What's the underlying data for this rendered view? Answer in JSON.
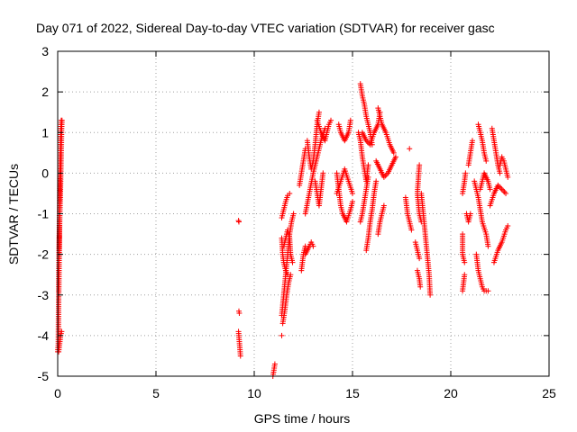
{
  "chart_data": {
    "type": "scatter",
    "title": "Day 071 of 2022, Sidereal Day-to-day VTEC variation (SDTVAR) for receiver gasc",
    "xlabel": "GPS time / hours",
    "ylabel": "SDTVAR / TECUs",
    "xlim": [
      0,
      25
    ],
    "ylim": [
      -5,
      3
    ],
    "xticks": [
      0,
      5,
      10,
      15,
      20,
      25
    ],
    "yticks": [
      -5,
      -4,
      -3,
      -2,
      -1,
      0,
      1,
      2,
      3
    ],
    "xtick_labels": [
      "0",
      "5",
      "10",
      "15",
      "20",
      "25"
    ],
    "ytick_labels": [
      "-5",
      "-4",
      "-3",
      "-2",
      "-1",
      "0",
      "1",
      "2",
      "3"
    ],
    "grid": true,
    "marker": "+",
    "color": "#ff0000",
    "segments": [
      [
        [
          0.0,
          -4.4
        ],
        [
          0.03,
          -4.2
        ],
        [
          0.05,
          -3.0
        ],
        [
          0.07,
          -2.2
        ],
        [
          0.09,
          -1.0
        ],
        [
          0.12,
          0.2
        ],
        [
          0.15,
          0.9
        ],
        [
          0.18,
          1.3
        ]
      ],
      [
        [
          0.05,
          -2.9
        ],
        [
          0.07,
          -2.0
        ],
        [
          0.1,
          -1.2
        ],
        [
          0.13,
          -0.6
        ],
        [
          0.16,
          0.0
        ],
        [
          0.18,
          0.5
        ],
        [
          0.2,
          1.1
        ],
        [
          0.22,
          1.3
        ]
      ],
      [
        [
          0.05,
          -4.4
        ],
        [
          0.1,
          -4.2
        ],
        [
          0.15,
          -4.0
        ],
        [
          0.2,
          -3.9
        ]
      ],
      [
        [
          9.2,
          -1.17
        ],
        [
          9.22,
          -1.2
        ]
      ],
      [
        [
          9.22,
          -3.4
        ],
        [
          9.24,
          -3.45
        ]
      ],
      [
        [
          9.2,
          -3.9
        ],
        [
          9.25,
          -4.2
        ],
        [
          9.3,
          -4.5
        ]
      ],
      [
        [
          10.95,
          -5.0
        ],
        [
          11.0,
          -4.85
        ],
        [
          11.05,
          -4.7
        ]
      ],
      [
        [
          11.4,
          -4.0
        ]
      ],
      [
        [
          11.4,
          -1.1
        ],
        [
          11.5,
          -0.9
        ],
        [
          11.6,
          -0.7
        ],
        [
          11.7,
          -0.55
        ],
        [
          11.8,
          -0.5
        ]
      ],
      [
        [
          11.4,
          -1.6
        ],
        [
          11.45,
          -2.0
        ],
        [
          11.5,
          -2.2
        ],
        [
          11.6,
          -2.4
        ],
        [
          11.7,
          -2.5
        ]
      ],
      [
        [
          11.4,
          -3.5
        ],
        [
          11.5,
          -3.0
        ],
        [
          11.6,
          -2.5
        ],
        [
          11.7,
          -2.0
        ],
        [
          11.8,
          -1.5
        ],
        [
          11.9,
          -1.2
        ],
        [
          12.0,
          -1.0
        ]
      ],
      [
        [
          11.5,
          -1.8
        ],
        [
          11.6,
          -1.6
        ],
        [
          11.7,
          -1.4
        ],
        [
          11.8,
          -1.6
        ],
        [
          11.85,
          -2.0
        ],
        [
          11.95,
          -2.2
        ]
      ],
      [
        [
          11.45,
          -3.7
        ],
        [
          11.55,
          -3.4
        ],
        [
          11.65,
          -3.0
        ],
        [
          11.75,
          -2.7
        ],
        [
          11.85,
          -2.5
        ]
      ],
      [
        [
          12.3,
          -0.3
        ],
        [
          12.5,
          0.3
        ],
        [
          12.6,
          0.6
        ]
      ],
      [
        [
          12.4,
          -2.4
        ],
        [
          12.5,
          -2.0
        ],
        [
          12.6,
          -1.8
        ]
      ],
      [
        [
          12.6,
          -1.0
        ],
        [
          12.8,
          -0.5
        ],
        [
          13.0,
          0.0
        ],
        [
          13.2,
          0.4
        ],
        [
          13.4,
          0.8
        ],
        [
          13.6,
          1.1
        ]
      ],
      [
        [
          12.7,
          0.8
        ],
        [
          12.8,
          0.4
        ],
        [
          12.9,
          0.1
        ],
        [
          13.0,
          0.3
        ],
        [
          13.1,
          0.7
        ],
        [
          13.2,
          1.2
        ],
        [
          13.3,
          1.5
        ]
      ],
      [
        [
          12.6,
          -2.0
        ],
        [
          12.8,
          -1.8
        ],
        [
          12.9,
          -1.7
        ],
        [
          13.0,
          -1.8
        ]
      ],
      [
        [
          13.1,
          -0.2
        ],
        [
          13.2,
          -0.5
        ],
        [
          13.3,
          -0.8
        ],
        [
          13.4,
          -0.4
        ],
        [
          13.5,
          0.0
        ]
      ],
      [
        [
          13.2,
          1.3
        ],
        [
          13.4,
          1.0
        ],
        [
          13.6,
          0.8
        ],
        [
          13.8,
          1.2
        ],
        [
          13.9,
          1.3
        ]
      ],
      [
        [
          14.3,
          1.2
        ],
        [
          14.4,
          1.0
        ],
        [
          14.6,
          0.8
        ],
        [
          14.8,
          1.0
        ],
        [
          14.9,
          1.3
        ]
      ],
      [
        [
          14.2,
          0.0
        ],
        [
          14.3,
          -0.4
        ],
        [
          14.4,
          -0.8
        ],
        [
          14.5,
          -1.0
        ],
        [
          14.7,
          -1.2
        ],
        [
          14.9,
          -0.9
        ],
        [
          15.0,
          -0.7
        ]
      ],
      [
        [
          14.2,
          -0.5
        ],
        [
          14.4,
          -0.2
        ],
        [
          14.6,
          0.1
        ],
        [
          14.8,
          -0.2
        ],
        [
          15.0,
          -0.5
        ]
      ],
      [
        [
          15.4,
          2.2
        ],
        [
          15.5,
          1.9
        ],
        [
          15.6,
          1.7
        ],
        [
          15.7,
          1.4
        ],
        [
          15.8,
          1.2
        ],
        [
          15.9,
          1.0
        ],
        [
          16.0,
          0.7
        ]
      ],
      [
        [
          15.3,
          1.0
        ],
        [
          15.4,
          0.8
        ],
        [
          15.5,
          0.4
        ],
        [
          15.6,
          0.1
        ],
        [
          15.7,
          -0.2
        ],
        [
          15.8,
          0.2
        ]
      ],
      [
        [
          15.4,
          -1.2
        ],
        [
          15.5,
          -1.0
        ],
        [
          15.6,
          -0.7
        ],
        [
          15.7,
          -0.4
        ],
        [
          15.8,
          -0.1
        ]
      ],
      [
        [
          15.5,
          1.0
        ],
        [
          15.7,
          0.8
        ],
        [
          15.9,
          0.7
        ],
        [
          16.1,
          1.0
        ],
        [
          16.3,
          1.2
        ],
        [
          16.4,
          1.5
        ]
      ],
      [
        [
          15.7,
          -1.9
        ],
        [
          15.8,
          -1.6
        ],
        [
          15.9,
          -1.2
        ],
        [
          16.0,
          -0.9
        ],
        [
          16.1,
          -0.5
        ],
        [
          16.2,
          -0.2
        ]
      ],
      [
        [
          16.2,
          0.3
        ],
        [
          16.4,
          0.1
        ],
        [
          16.6,
          -0.1
        ],
        [
          16.8,
          0.0
        ],
        [
          17.0,
          0.2
        ],
        [
          17.2,
          0.4
        ]
      ],
      [
        [
          16.3,
          1.6
        ],
        [
          16.4,
          1.4
        ],
        [
          16.5,
          1.2
        ],
        [
          16.7,
          1.0
        ],
        [
          16.9,
          0.7
        ],
        [
          17.1,
          0.5
        ]
      ],
      [
        [
          16.3,
          -1.5
        ],
        [
          16.4,
          -1.2
        ],
        [
          16.5,
          -1.0
        ],
        [
          16.6,
          -0.8
        ]
      ],
      [
        [
          17.7,
          -0.6
        ],
        [
          17.8,
          -1.0
        ],
        [
          17.9,
          -1.2
        ],
        [
          18.0,
          -1.4
        ]
      ],
      [
        [
          17.9,
          0.6
        ]
      ],
      [
        [
          18.4,
          0.2
        ],
        [
          18.3,
          -0.5
        ],
        [
          18.4,
          -1.0
        ],
        [
          18.5,
          -1.2
        ]
      ],
      [
        [
          18.2,
          -1.7
        ],
        [
          18.3,
          -1.9
        ],
        [
          18.4,
          -2.1
        ]
      ],
      [
        [
          18.5,
          -0.5
        ],
        [
          18.6,
          -1.0
        ],
        [
          18.7,
          -1.5
        ],
        [
          18.8,
          -2.0
        ],
        [
          18.9,
          -2.5
        ],
        [
          18.95,
          -3.0
        ]
      ],
      [
        [
          18.3,
          -2.4
        ],
        [
          18.4,
          -2.6
        ],
        [
          18.45,
          -2.8
        ]
      ],
      [
        [
          20.6,
          -1.5
        ],
        [
          20.6,
          -2.0
        ],
        [
          20.7,
          -2.2
        ]
      ],
      [
        [
          20.6,
          -2.9
        ],
        [
          20.65,
          -2.7
        ],
        [
          20.7,
          -2.5
        ]
      ],
      [
        [
          20.6,
          -0.5
        ],
        [
          20.7,
          -0.2
        ],
        [
          20.75,
          0.0
        ]
      ],
      [
        [
          20.8,
          -1.0
        ],
        [
          20.9,
          -1.2
        ],
        [
          21.0,
          -1.0
        ]
      ],
      [
        [
          20.9,
          0.2
        ],
        [
          21.0,
          0.5
        ],
        [
          21.1,
          0.8
        ]
      ],
      [
        [
          21.2,
          -0.2
        ],
        [
          21.4,
          -0.6
        ],
        [
          21.6,
          -1.2
        ],
        [
          21.8,
          -1.5
        ],
        [
          21.9,
          -1.8
        ]
      ],
      [
        [
          21.4,
          1.2
        ],
        [
          21.5,
          1.0
        ],
        [
          21.6,
          0.8
        ],
        [
          21.7,
          0.5
        ],
        [
          21.8,
          0.3
        ]
      ],
      [
        [
          21.3,
          -2.0
        ],
        [
          21.4,
          -2.4
        ],
        [
          21.5,
          -2.6
        ],
        [
          21.6,
          -2.8
        ],
        [
          21.7,
          -2.9
        ],
        [
          21.9,
          -2.9
        ]
      ],
      [
        [
          21.5,
          -0.4
        ],
        [
          21.6,
          -0.2
        ],
        [
          21.7,
          0.0
        ],
        [
          21.9,
          -0.2
        ],
        [
          22.0,
          -0.4
        ]
      ],
      [
        [
          22.1,
          1.1
        ],
        [
          22.2,
          0.8
        ],
        [
          22.3,
          0.5
        ],
        [
          22.4,
          0.2
        ],
        [
          22.5,
          0.0
        ]
      ],
      [
        [
          22.0,
          -0.8
        ],
        [
          22.2,
          -0.5
        ],
        [
          22.4,
          -0.3
        ],
        [
          22.6,
          -0.4
        ],
        [
          22.8,
          -0.5
        ]
      ],
      [
        [
          22.2,
          -2.2
        ],
        [
          22.4,
          -1.9
        ],
        [
          22.6,
          -1.7
        ],
        [
          22.8,
          -1.4
        ],
        [
          22.9,
          -1.3
        ]
      ],
      [
        [
          22.5,
          0.2
        ],
        [
          22.6,
          0.4
        ],
        [
          22.7,
          0.3
        ],
        [
          22.8,
          0.1
        ],
        [
          22.9,
          -0.1
        ]
      ]
    ]
  }
}
